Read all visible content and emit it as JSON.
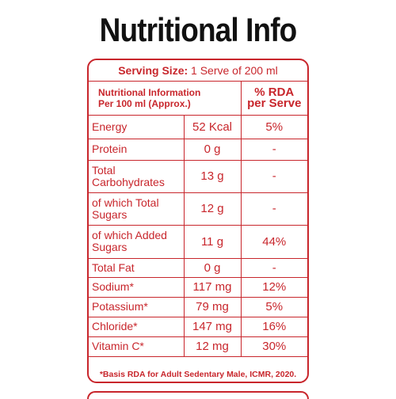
{
  "title": "Nutritional Info",
  "serving": {
    "label": "Serving Size:",
    "value": "1 Serve of 200 ml"
  },
  "header": {
    "col1_line1": "Nutritional Information",
    "col1_line2": "Per 100 ml (Approx.)",
    "col3_line1": "% RDA",
    "col3_line2": "per Serve"
  },
  "rows": [
    {
      "name": "Energy",
      "amount": "52 Kcal",
      "rda": "5%"
    },
    {
      "name": "Protein",
      "amount": "0 g",
      "rda": "-"
    },
    {
      "name": "Total Carbohydrates",
      "amount": "13 g",
      "rda": "-"
    },
    {
      "name": "of which Total Sugars",
      "amount": "12 g",
      "rda": "-"
    },
    {
      "name": "of which Added Sugars",
      "amount": "11 g",
      "rda": "44%"
    },
    {
      "name": "Total Fat",
      "amount": "0 g",
      "rda": "-"
    },
    {
      "name": "Sodium*",
      "amount": "117 mg",
      "rda": "12%"
    },
    {
      "name": "Potassium*",
      "amount": "79 mg",
      "rda": "5%"
    },
    {
      "name": "Chloride*",
      "amount": "147 mg",
      "rda": "16%"
    },
    {
      "name": "Vitamin C*",
      "amount": "12 mg",
      "rda": "30%"
    }
  ],
  "footnote": "*Basis RDA for Adult Sedentary Male, ICMR, 2020.",
  "colors": {
    "accent": "#c8262c",
    "title": "#111111"
  }
}
